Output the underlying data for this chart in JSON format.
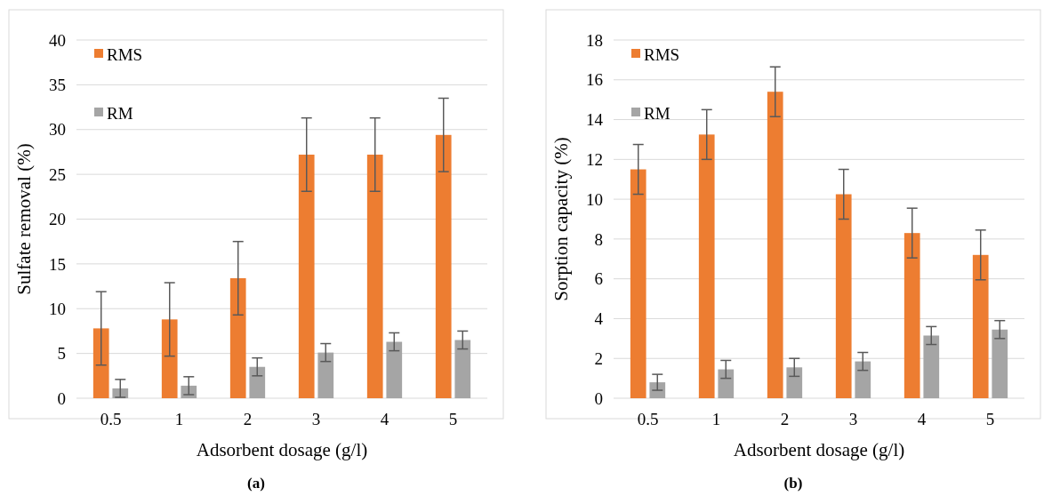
{
  "chart_data": [
    {
      "type": "bar",
      "categories": [
        "0.5",
        "1",
        "2",
        "3",
        "4",
        "5"
      ],
      "xlabel": "Adsorbent dosage (g/l)",
      "ylabel": "Sulfate removal (%)",
      "ylim": [
        0,
        40
      ],
      "yticks": [
        0,
        5,
        10,
        15,
        20,
        25,
        30,
        35,
        40
      ],
      "grid": "y",
      "legend": "top left",
      "annotations": [
        "(a)"
      ],
      "series": [
        {
          "name": "RMS",
          "color": "#ed7d31",
          "values": [
            7.8,
            8.8,
            13.4,
            27.2,
            27.2,
            29.4
          ],
          "errors": [
            4.1,
            4.1,
            4.1,
            4.1,
            4.1,
            4.1
          ]
        },
        {
          "name": "RM",
          "color": "#a5a5a5",
          "values": [
            1.1,
            1.4,
            3.5,
            5.1,
            6.3,
            6.5
          ],
          "errors": [
            1,
            1,
            1,
            1,
            1,
            1
          ]
        }
      ]
    },
    {
      "type": "bar",
      "categories": [
        "0.5",
        "1",
        "2",
        "3",
        "4",
        "5"
      ],
      "xlabel": "Adsorbent dosage (g/l)",
      "ylabel": "Sorption capacity (%)",
      "ylim": [
        0,
        18
      ],
      "yticks": [
        0,
        2,
        4,
        6,
        8,
        10,
        12,
        14,
        16,
        18
      ],
      "grid": "y",
      "legend": "top left",
      "annotations": [
        "(b)"
      ],
      "series": [
        {
          "name": "RMS",
          "color": "#ed7d31",
          "values": [
            11.5,
            13.25,
            15.4,
            10.25,
            8.3,
            7.2
          ],
          "errors": [
            1.25,
            1.25,
            1.25,
            1.25,
            1.25,
            1.25
          ]
        },
        {
          "name": "RM",
          "color": "#a5a5a5",
          "values": [
            0.8,
            1.45,
            1.55,
            1.85,
            3.15,
            3.45
          ],
          "errors": [
            0.4,
            0.45,
            0.45,
            0.45,
            0.45,
            0.45
          ]
        }
      ]
    }
  ]
}
